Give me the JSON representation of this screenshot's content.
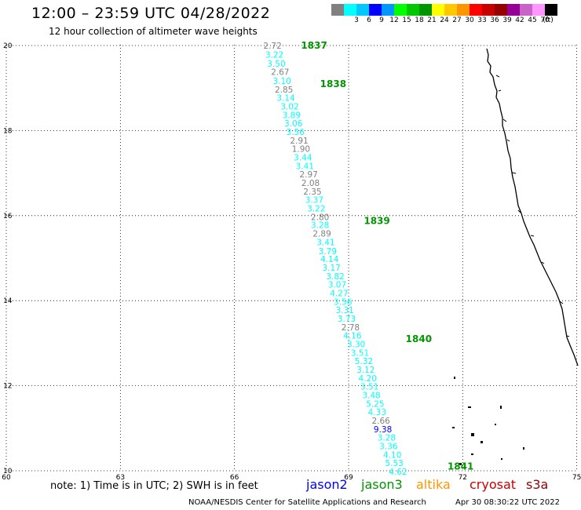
{
  "header": {
    "title": "12:00 – 23:59 UTC 04/28/2022",
    "subtitle": "12 hour collection of altimeter wave heights"
  },
  "legend": {
    "unit": "(ft)",
    "bins": [
      {
        "label": "",
        "color": "#808080"
      },
      {
        "label": "3",
        "color": "#00ffff"
      },
      {
        "label": "6",
        "color": "#00c8ff"
      },
      {
        "label": "9",
        "color": "#0000ff"
      },
      {
        "label": "12",
        "color": "#0096ff"
      },
      {
        "label": "15",
        "color": "#00ff00"
      },
      {
        "label": "18",
        "color": "#00c800"
      },
      {
        "label": "21",
        "color": "#009600"
      },
      {
        "label": "24",
        "color": "#ffff00"
      },
      {
        "label": "27",
        "color": "#ffc800"
      },
      {
        "label": "30",
        "color": "#ff9600"
      },
      {
        "label": "33",
        "color": "#ff0000"
      },
      {
        "label": "36",
        "color": "#c80000"
      },
      {
        "label": "39",
        "color": "#960000"
      },
      {
        "label": "42",
        "color": "#960096"
      },
      {
        "label": "45",
        "color": "#c864c8"
      },
      {
        "label": "70",
        "color": "#ff96ff"
      },
      {
        "label": "",
        "color": "#000000"
      }
    ]
  },
  "axes": {
    "lon_ticks": [
      "60",
      "63",
      "66",
      "69",
      "72",
      "75"
    ],
    "lat_ticks": [
      "10",
      "12",
      "14",
      "16",
      "18",
      "20"
    ]
  },
  "pass_labels": [
    {
      "text": "1837",
      "lon": 67.75,
      "lat": 20.0
    },
    {
      "text": "1838",
      "lon": 68.25,
      "lat": 19.1
    },
    {
      "text": "1839",
      "lon": 69.4,
      "lat": 15.88
    },
    {
      "text": "1840",
      "lon": 70.5,
      "lat": 13.1
    },
    {
      "text": "1841",
      "lon": 71.6,
      "lat": 10.1
    }
  ],
  "observations": [
    {
      "value": "2.72",
      "lon": 67.0,
      "lat": 20.0,
      "color": "#808080"
    },
    {
      "value": "3.22",
      "lon": 67.05,
      "lat": 19.79,
      "color": "#00ffff"
    },
    {
      "value": "3.50",
      "lon": 67.1,
      "lat": 19.58,
      "color": "#00ffff"
    },
    {
      "value": "2.67",
      "lon": 67.2,
      "lat": 19.38,
      "color": "#808080"
    },
    {
      "value": "3.10",
      "lon": 67.25,
      "lat": 19.17,
      "color": "#00ffff"
    },
    {
      "value": "2.85",
      "lon": 67.3,
      "lat": 18.97,
      "color": "#808080"
    },
    {
      "value": "3.14",
      "lon": 67.35,
      "lat": 18.77,
      "color": "#00ffff"
    },
    {
      "value": "3.02",
      "lon": 67.45,
      "lat": 18.57,
      "color": "#00ffff"
    },
    {
      "value": "3.89",
      "lon": 67.5,
      "lat": 18.37,
      "color": "#00ffff"
    },
    {
      "value": "3.06",
      "lon": 67.55,
      "lat": 18.17,
      "color": "#00ffff"
    },
    {
      "value": "3.56",
      "lon": 67.6,
      "lat": 17.97,
      "color": "#00ffff"
    },
    {
      "value": "2.91",
      "lon": 67.7,
      "lat": 17.77,
      "color": "#808080"
    },
    {
      "value": "1.90",
      "lon": 67.75,
      "lat": 17.57,
      "color": "#808080"
    },
    {
      "value": "3.44",
      "lon": 67.8,
      "lat": 17.37,
      "color": "#00ffff"
    },
    {
      "value": "3.41",
      "lon": 67.85,
      "lat": 17.17,
      "color": "#00ffff"
    },
    {
      "value": "2.97",
      "lon": 67.95,
      "lat": 16.97,
      "color": "#808080"
    },
    {
      "value": "2.08",
      "lon": 68.0,
      "lat": 16.77,
      "color": "#808080"
    },
    {
      "value": "2.35",
      "lon": 68.05,
      "lat": 16.57,
      "color": "#808080"
    },
    {
      "value": "3.37",
      "lon": 68.1,
      "lat": 16.37,
      "color": "#00ffff"
    },
    {
      "value": "3.22",
      "lon": 68.15,
      "lat": 16.17,
      "color": "#00ffff"
    },
    {
      "value": "2.80",
      "lon": 68.25,
      "lat": 15.97,
      "color": "#808080"
    },
    {
      "value": "3.28",
      "lon": 68.25,
      "lat": 15.78,
      "color": "#00ffff"
    },
    {
      "value": "2.89",
      "lon": 68.3,
      "lat": 15.58,
      "color": "#808080"
    },
    {
      "value": "3.41",
      "lon": 68.4,
      "lat": 15.38,
      "color": "#00ffff"
    },
    {
      "value": "3.79",
      "lon": 68.45,
      "lat": 15.17,
      "color": "#00ffff"
    },
    {
      "value": "4.14",
      "lon": 68.5,
      "lat": 14.98,
      "color": "#00ffff"
    },
    {
      "value": "3.17",
      "lon": 68.55,
      "lat": 14.78,
      "color": "#00ffff"
    },
    {
      "value": "3.82",
      "lon": 68.65,
      "lat": 14.58,
      "color": "#00ffff"
    },
    {
      "value": "3.07",
      "lon": 68.7,
      "lat": 14.38,
      "color": "#00ffff"
    },
    {
      "value": "4.27",
      "lon": 68.75,
      "lat": 14.18,
      "color": "#00ffff"
    },
    {
      "value": "3.56",
      "lon": 68.85,
      "lat": 13.98,
      "color": "#00ffff"
    },
    {
      "value": "3.31",
      "lon": 68.9,
      "lat": 13.78,
      "color": "#00ffff"
    },
    {
      "value": "3.73",
      "lon": 68.95,
      "lat": 13.58,
      "color": "#00ffff"
    },
    {
      "value": "2.78",
      "lon": 69.05,
      "lat": 13.38,
      "color": "#808080"
    },
    {
      "value": "4.16",
      "lon": 69.1,
      "lat": 13.18,
      "color": "#00ffff"
    },
    {
      "value": "3.30",
      "lon": 69.2,
      "lat": 12.98,
      "color": "#00ffff"
    },
    {
      "value": "3.51",
      "lon": 69.3,
      "lat": 12.78,
      "color": "#00ffff"
    },
    {
      "value": "5.32",
      "lon": 69.4,
      "lat": 12.58,
      "color": "#00ffff"
    },
    {
      "value": "3.12",
      "lon": 69.45,
      "lat": 12.38,
      "color": "#00ffff"
    },
    {
      "value": "4.20",
      "lon": 69.5,
      "lat": 12.18,
      "color": "#00ffff"
    },
    {
      "value": "3.51",
      "lon": 69.55,
      "lat": 11.98,
      "color": "#00ffff"
    },
    {
      "value": "3.48",
      "lon": 69.6,
      "lat": 11.78,
      "color": "#00ffff"
    },
    {
      "value": "5.25",
      "lon": 69.7,
      "lat": 11.58,
      "color": "#00ffff"
    },
    {
      "value": "4.33",
      "lon": 69.75,
      "lat": 11.38,
      "color": "#00ffff"
    },
    {
      "value": "2.66",
      "lon": 69.85,
      "lat": 11.18,
      "color": "#808080"
    },
    {
      "value": "9.38",
      "lon": 69.9,
      "lat": 10.98,
      "color": "#0000ff"
    },
    {
      "value": "3.28",
      "lon": 70.0,
      "lat": 10.78,
      "color": "#00ffff"
    },
    {
      "value": "3.36",
      "lon": 70.05,
      "lat": 10.58,
      "color": "#00ffff"
    },
    {
      "value": "4.10",
      "lon": 70.15,
      "lat": 10.38,
      "color": "#00ffff"
    },
    {
      "value": "5.53",
      "lon": 70.2,
      "lat": 10.18,
      "color": "#00ffff"
    },
    {
      "value": "4.62",
      "lon": 70.3,
      "lat": 9.98,
      "color": "#00ffff"
    }
  ],
  "footer": {
    "note": "note:  1) Time is in UTC;  2) SWH is in feet",
    "satellites": [
      {
        "name": "jason2",
        "color": "#0000ff"
      },
      {
        "name": "jason3",
        "color": "#009600"
      },
      {
        "name": "altika",
        "color": "#ff9600"
      },
      {
        "name": "cryosat",
        "color": "#c80000"
      },
      {
        "name": "s3a",
        "color": "#960000"
      }
    ],
    "credit": "NOAA/NESDIS Center for Satellite Applications and Research",
    "generated": "Apr 30 08:30:22 UTC 2022"
  }
}
